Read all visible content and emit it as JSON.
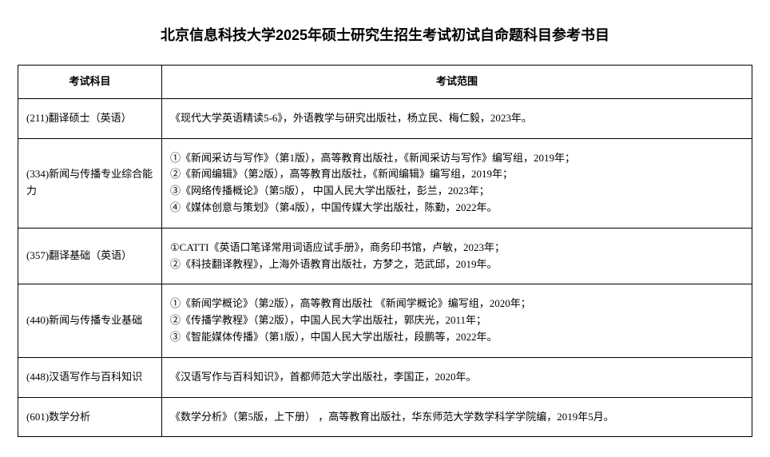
{
  "title": "北京信息科技大学2025年硕士研究生招生考试初试自命题科目参考书目",
  "headers": {
    "subject": "考试科目",
    "scope": "考试范围"
  },
  "rows": [
    {
      "subject": "(211)翻译硕士（英语）",
      "scope": [
        "《现代大学英语精读5-6》，外语教学与研究出版社，杨立民、梅仁毅，2023年。"
      ]
    },
    {
      "subject": "(334)新闻与传播专业综合能力",
      "scope": [
        "①《新闻采访与写作》（第1版），高等教育出版社，《新闻采访与写作》编写组，2019年；",
        "②《新闻编辑》（第2版），高等教育出版社，《新闻编辑》编写组，2019年；",
        "③《网络传播概论》（第5版）， 中国人民大学出版社，彭兰，2023年；",
        "④《媒体创意与策划》（第4版），中国传媒大学出版社，陈勤，2022年。"
      ]
    },
    {
      "subject": "(357)翻译基础（英语）",
      "scope": [
        "①CATTI《英语口笔译常用词语应试手册》，商务印书馆，卢敏，2023年；",
        "②《科技翻译教程》，上海外语教育出版社，方梦之，范武邱，2019年。"
      ]
    },
    {
      "subject": "(440)新闻与传播专业基础",
      "scope": [
        "①《新闻学概论》（第2版），高等教育出版社 《新闻学概论》编写组，2020年；",
        "②《传播学教程》（第2版），中国人民大学出版社，郭庆光，2011年；",
        "③《智能媒体传播》（第1版），中国人民大学出版社，段鹏等，2022年。"
      ]
    },
    {
      "subject": "(448)汉语写作与百科知识",
      "scope": [
        "《汉语写作与百科知识》，首都师范大学出版社，李国正，2020年。"
      ]
    },
    {
      "subject": "(601)数学分析",
      "scope": [
        "《数学分析》（第5版，上下册） ，高等教育出版社，华东师范大学数学科学学院编，2019年5月。"
      ]
    }
  ]
}
